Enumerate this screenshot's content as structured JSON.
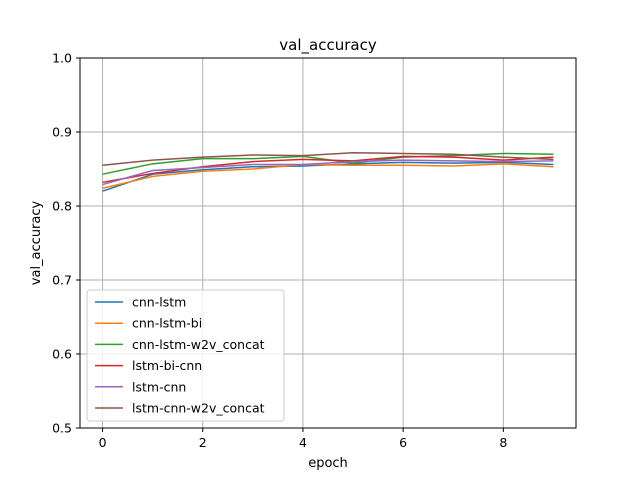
{
  "chart_data": {
    "type": "line",
    "title": "val_accuracy",
    "xlabel": "epoch",
    "ylabel": "val_accuracy",
    "xlim": [
      -0.45,
      9.45
    ],
    "ylim": [
      0.5,
      1.0
    ],
    "x": [
      0,
      1,
      2,
      3,
      4,
      5,
      6,
      7,
      8,
      9
    ],
    "xticks": [
      "0",
      "2",
      "4",
      "6",
      "8"
    ],
    "yticks": [
      "0.5",
      "0.6",
      "0.7",
      "0.8",
      "0.9",
      "1.0"
    ],
    "grid": true,
    "legend_position": "lower-left",
    "series": [
      {
        "name": "cnn-lstm",
        "color": "#1f77b4",
        "values": [
          0.82,
          0.843,
          0.849,
          0.853,
          0.854,
          0.857,
          0.859,
          0.858,
          0.859,
          0.856
        ]
      },
      {
        "name": "cnn-lstm-bi",
        "color": "#ff7f0e",
        "values": [
          0.824,
          0.84,
          0.847,
          0.85,
          0.856,
          0.855,
          0.855,
          0.854,
          0.857,
          0.853
        ]
      },
      {
        "name": "cnn-lstm-w2v_concat",
        "color": "#2ca02c",
        "values": [
          0.843,
          0.857,
          0.864,
          0.864,
          0.867,
          0.858,
          0.866,
          0.868,
          0.871,
          0.87
        ]
      },
      {
        "name": "lstm-bi-cnn",
        "color": "#d62728",
        "values": [
          0.832,
          0.844,
          0.853,
          0.86,
          0.863,
          0.861,
          0.867,
          0.866,
          0.862,
          0.866
        ]
      },
      {
        "name": "lstm-cnn",
        "color": "#9467bd",
        "values": [
          0.829,
          0.848,
          0.852,
          0.856,
          0.856,
          0.86,
          0.862,
          0.861,
          0.86,
          0.861
        ]
      },
      {
        "name": "lstm-cnn-w2v_concat",
        "color": "#8c564b",
        "values": [
          0.855,
          0.862,
          0.866,
          0.869,
          0.868,
          0.872,
          0.871,
          0.87,
          0.866,
          0.863
        ]
      }
    ]
  }
}
